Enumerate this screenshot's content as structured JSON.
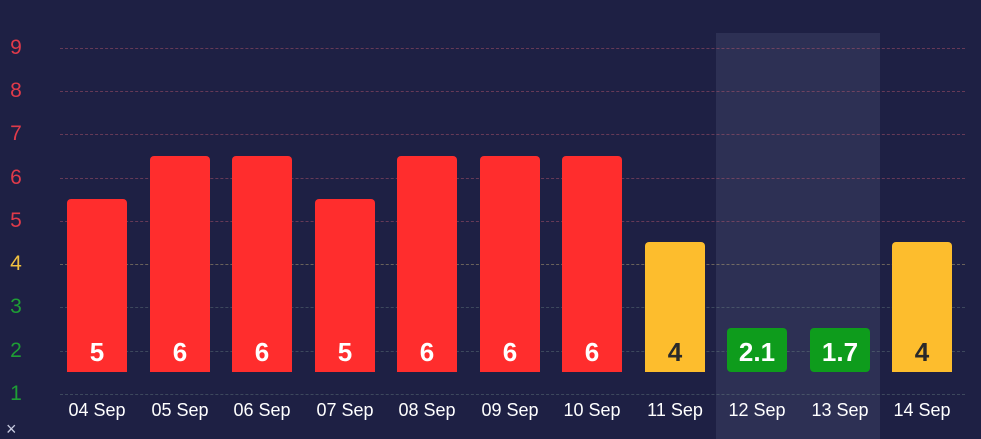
{
  "chart_data": {
    "type": "bar",
    "title": "",
    "xlabel": "",
    "ylabel": "",
    "ylim": [
      1,
      9
    ],
    "grid": true,
    "categories": [
      "04 Sep",
      "05 Sep",
      "06 Sep",
      "07 Sep",
      "08 Sep",
      "09 Sep",
      "10 Sep",
      "11 Sep",
      "12 Sep",
      "13 Sep",
      "14 Sep"
    ],
    "values": [
      5,
      6,
      6,
      5,
      6,
      6,
      6,
      4,
      2.1,
      1.7,
      4
    ],
    "value_labels": [
      "5",
      "6",
      "6",
      "5",
      "6",
      "6",
      "6",
      "4",
      "2.1",
      "1.7",
      "4"
    ],
    "bar_colors": [
      "red",
      "red",
      "red",
      "red",
      "red",
      "red",
      "red",
      "yellow",
      "green",
      "green",
      "yellow"
    ],
    "y_ticks": [
      "9",
      "8",
      "7",
      "6",
      "5",
      "4",
      "3",
      "2",
      "1"
    ],
    "highlighted_categories": [
      "12 Sep",
      "13 Sep"
    ]
  },
  "colors": {
    "background": "#1e2044",
    "highlight": "#2d3054",
    "red": "#ff2d2d",
    "yellow": "#fdbd2d",
    "green": "#0e9c1c",
    "tick_red": "#e03a4a",
    "tick_yellow": "#f0c040",
    "tick_green": "#1e9e35"
  },
  "axis_footer_mark": "×"
}
